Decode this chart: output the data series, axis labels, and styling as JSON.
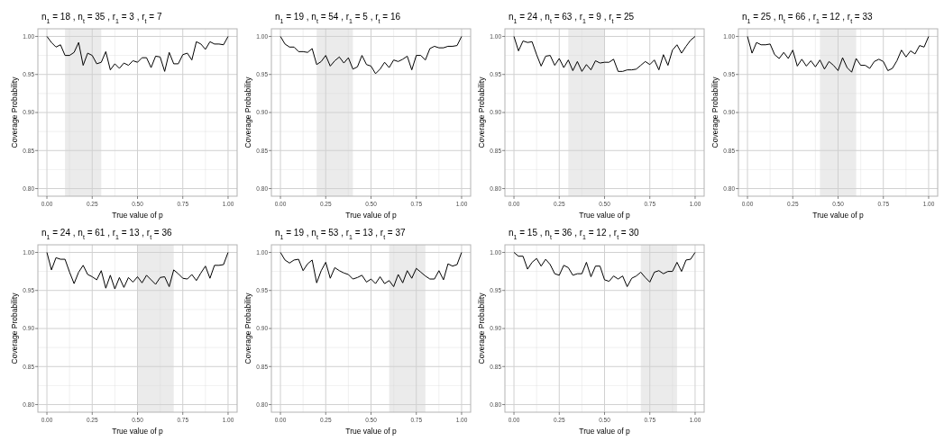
{
  "chart_data": [
    {
      "type": "line",
      "title": "n$_{1}$ = 18 , n$_{t}$ = 35 , r$_{1}$ = 3 , r$_{t}$ = 7",
      "xlabel": "True value of p",
      "ylabel": "Coverage Probability",
      "xlim": [
        -0.05,
        1.05
      ],
      "ylim": [
        0.79,
        1.01
      ],
      "xticks": [
        {
          "value": 0,
          "label": "0.00"
        },
        {
          "value": 0.25,
          "label": "0.25"
        },
        {
          "value": 0.5,
          "label": "0.50"
        },
        {
          "value": 0.75,
          "label": "0.75"
        },
        {
          "value": 1,
          "label": "1.00"
        }
      ],
      "yticks": [
        {
          "value": 0.8,
          "label": "0.80"
        },
        {
          "value": 0.85,
          "label": "0.85"
        },
        {
          "value": 0.9,
          "label": "0.90"
        },
        {
          "value": 0.95,
          "label": "0.95"
        },
        {
          "value": 1,
          "label": "1.00"
        }
      ],
      "grid": true,
      "bands": [
        {
          "axis": "x",
          "from": 0.1,
          "to": 0.3,
          "color": "#ebebeb"
        }
      ],
      "x": [
        0,
        0.025,
        0.05,
        0.075,
        0.1,
        0.125,
        0.15,
        0.175,
        0.2,
        0.225,
        0.25,
        0.275,
        0.3,
        0.325,
        0.35,
        0.375,
        0.4,
        0.425,
        0.45,
        0.475,
        0.5,
        0.525,
        0.55,
        0.575,
        0.6,
        0.625,
        0.65,
        0.675,
        0.7,
        0.725,
        0.75,
        0.775,
        0.8,
        0.825,
        0.85,
        0.875,
        0.9,
        0.925,
        0.95,
        0.975,
        1
      ],
      "series": [
        {
          "color": "#000000",
          "values": [
            1.0,
            0.992,
            0.986,
            0.989,
            0.975,
            0.975,
            0.979,
            0.992,
            0.962,
            0.978,
            0.975,
            0.964,
            0.966,
            0.98,
            0.956,
            0.964,
            0.958,
            0.965,
            0.962,
            0.968,
            0.966,
            0.972,
            0.972,
            0.959,
            0.974,
            0.973,
            0.954,
            0.979,
            0.964,
            0.964,
            0.976,
            0.978,
            0.969,
            0.993,
            0.99,
            0.983,
            0.993,
            0.99,
            0.99,
            0.989,
            1.0
          ]
        }
      ]
    },
    {
      "type": "line",
      "title": "n$_{1}$ = 19 , n$_{t}$ = 54 , r$_{1}$ = 5 , r$_{t}$ = 16",
      "xlabel": "True value of p",
      "ylabel": "Coverage Probability",
      "xlim": [
        -0.05,
        1.05
      ],
      "ylim": [
        0.79,
        1.01
      ],
      "xticks": [
        {
          "value": 0,
          "label": "0.00"
        },
        {
          "value": 0.25,
          "label": "0.25"
        },
        {
          "value": 0.5,
          "label": "0.50"
        },
        {
          "value": 0.75,
          "label": "0.75"
        },
        {
          "value": 1,
          "label": "1.00"
        }
      ],
      "yticks": [
        {
          "value": 0.8,
          "label": "0.80"
        },
        {
          "value": 0.85,
          "label": "0.85"
        },
        {
          "value": 0.9,
          "label": "0.90"
        },
        {
          "value": 0.95,
          "label": "0.95"
        },
        {
          "value": 1,
          "label": "1.00"
        }
      ],
      "grid": true,
      "bands": [
        {
          "axis": "x",
          "from": 0.2,
          "to": 0.4,
          "color": "#ebebeb"
        }
      ],
      "x": [
        0,
        0.025,
        0.05,
        0.075,
        0.1,
        0.125,
        0.15,
        0.175,
        0.2,
        0.225,
        0.25,
        0.275,
        0.3,
        0.325,
        0.35,
        0.375,
        0.4,
        0.425,
        0.45,
        0.475,
        0.5,
        0.525,
        0.55,
        0.575,
        0.6,
        0.625,
        0.65,
        0.675,
        0.7,
        0.725,
        0.75,
        0.775,
        0.8,
        0.825,
        0.85,
        0.875,
        0.9,
        0.925,
        0.95,
        0.975,
        1
      ],
      "series": [
        {
          "color": "#000000",
          "values": [
            1.0,
            0.99,
            0.986,
            0.986,
            0.98,
            0.98,
            0.979,
            0.984,
            0.963,
            0.967,
            0.975,
            0.961,
            0.968,
            0.973,
            0.965,
            0.972,
            0.957,
            0.96,
            0.975,
            0.963,
            0.961,
            0.951,
            0.957,
            0.966,
            0.959,
            0.969,
            0.967,
            0.97,
            0.974,
            0.956,
            0.975,
            0.975,
            0.969,
            0.984,
            0.987,
            0.985,
            0.985,
            0.987,
            0.987,
            0.988,
            1.0
          ]
        }
      ]
    },
    {
      "type": "line",
      "title": "n$_{1}$ = 24 , n$_{t}$ = 63 , r$_{1}$ = 9 , r$_{t}$ = 25",
      "xlabel": "True value of p",
      "ylabel": "Coverage Probability",
      "xlim": [
        -0.05,
        1.05
      ],
      "ylim": [
        0.79,
        1.01
      ],
      "xticks": [
        {
          "value": 0,
          "label": "0.00"
        },
        {
          "value": 0.25,
          "label": "0.25"
        },
        {
          "value": 0.5,
          "label": "0.50"
        },
        {
          "value": 0.75,
          "label": "0.75"
        },
        {
          "value": 1,
          "label": "1.00"
        }
      ],
      "yticks": [
        {
          "value": 0.8,
          "label": "0.80"
        },
        {
          "value": 0.85,
          "label": "0.85"
        },
        {
          "value": 0.9,
          "label": "0.90"
        },
        {
          "value": 0.95,
          "label": "0.95"
        },
        {
          "value": 1,
          "label": "1.00"
        }
      ],
      "grid": true,
      "bands": [
        {
          "axis": "x",
          "from": 0.3,
          "to": 0.5,
          "color": "#ebebeb"
        }
      ],
      "x": [
        0,
        0.025,
        0.05,
        0.075,
        0.1,
        0.125,
        0.15,
        0.175,
        0.2,
        0.225,
        0.25,
        0.275,
        0.3,
        0.325,
        0.35,
        0.375,
        0.4,
        0.425,
        0.45,
        0.475,
        0.5,
        0.525,
        0.55,
        0.575,
        0.6,
        0.625,
        0.65,
        0.675,
        0.7,
        0.725,
        0.75,
        0.775,
        0.8,
        0.825,
        0.85,
        0.875,
        0.9,
        0.925,
        0.95,
        0.975,
        1
      ],
      "series": [
        {
          "color": "#000000",
          "values": [
            1.0,
            0.981,
            0.994,
            0.992,
            0.993,
            0.976,
            0.961,
            0.974,
            0.975,
            0.962,
            0.971,
            0.959,
            0.969,
            0.955,
            0.967,
            0.954,
            0.963,
            0.956,
            0.968,
            0.965,
            0.966,
            0.966,
            0.97,
            0.954,
            0.954,
            0.956,
            0.956,
            0.957,
            0.962,
            0.967,
            0.963,
            0.969,
            0.956,
            0.976,
            0.962,
            0.982,
            0.989,
            0.978,
            0.987,
            0.995,
            1.0
          ]
        }
      ]
    },
    {
      "type": "line",
      "title": "n$_{1}$ = 25 , n$_{t}$ = 66 , r$_{1}$ = 12 , r$_{t}$ = 33",
      "xlabel": "True value of p",
      "ylabel": "Coverage Probability",
      "xlim": [
        -0.05,
        1.05
      ],
      "ylim": [
        0.79,
        1.01
      ],
      "xticks": [
        {
          "value": 0,
          "label": "0.00"
        },
        {
          "value": 0.25,
          "label": "0.25"
        },
        {
          "value": 0.5,
          "label": "0.50"
        },
        {
          "value": 0.75,
          "label": "0.75"
        },
        {
          "value": 1,
          "label": "1.00"
        }
      ],
      "yticks": [
        {
          "value": 0.8,
          "label": "0.80"
        },
        {
          "value": 0.85,
          "label": "0.85"
        },
        {
          "value": 0.9,
          "label": "0.90"
        },
        {
          "value": 0.95,
          "label": "0.95"
        },
        {
          "value": 1,
          "label": "1.00"
        }
      ],
      "grid": true,
      "bands": [
        {
          "axis": "x",
          "from": 0.4,
          "to": 0.6,
          "color": "#ebebeb"
        }
      ],
      "x": [
        0,
        0.025,
        0.05,
        0.075,
        0.1,
        0.125,
        0.15,
        0.175,
        0.2,
        0.225,
        0.25,
        0.275,
        0.3,
        0.325,
        0.35,
        0.375,
        0.4,
        0.425,
        0.45,
        0.475,
        0.5,
        0.525,
        0.55,
        0.575,
        0.6,
        0.625,
        0.65,
        0.675,
        0.7,
        0.725,
        0.75,
        0.775,
        0.8,
        0.825,
        0.85,
        0.875,
        0.9,
        0.925,
        0.95,
        0.975,
        1
      ],
      "series": [
        {
          "color": "#000000",
          "values": [
            1.0,
            0.978,
            0.992,
            0.989,
            0.989,
            0.99,
            0.976,
            0.971,
            0.979,
            0.971,
            0.982,
            0.961,
            0.97,
            0.961,
            0.968,
            0.96,
            0.969,
            0.957,
            0.967,
            0.962,
            0.955,
            0.972,
            0.959,
            0.953,
            0.971,
            0.962,
            0.962,
            0.958,
            0.967,
            0.97,
            0.967,
            0.955,
            0.958,
            0.968,
            0.982,
            0.973,
            0.981,
            0.977,
            0.988,
            0.986,
            1.0
          ]
        }
      ]
    },
    {
      "type": "line",
      "title": "n$_{1}$ = 24 , n$_{t}$ = 61 , r$_{1}$ = 13 , r$_{t}$ = 36",
      "xlabel": "True value of p",
      "ylabel": "Coverage Probability",
      "xlim": [
        -0.05,
        1.05
      ],
      "ylim": [
        0.79,
        1.01
      ],
      "xticks": [
        {
          "value": 0,
          "label": "0.00"
        },
        {
          "value": 0.25,
          "label": "0.25"
        },
        {
          "value": 0.5,
          "label": "0.50"
        },
        {
          "value": 0.75,
          "label": "0.75"
        },
        {
          "value": 1,
          "label": "1.00"
        }
      ],
      "yticks": [
        {
          "value": 0.8,
          "label": "0.80"
        },
        {
          "value": 0.85,
          "label": "0.85"
        },
        {
          "value": 0.9,
          "label": "0.90"
        },
        {
          "value": 0.95,
          "label": "0.95"
        },
        {
          "value": 1,
          "label": "1.00"
        }
      ],
      "grid": true,
      "bands": [
        {
          "axis": "x",
          "from": 0.5,
          "to": 0.7,
          "color": "#ebebeb"
        }
      ],
      "x": [
        0,
        0.025,
        0.05,
        0.075,
        0.1,
        0.125,
        0.15,
        0.175,
        0.2,
        0.225,
        0.25,
        0.275,
        0.3,
        0.325,
        0.35,
        0.375,
        0.4,
        0.425,
        0.45,
        0.475,
        0.5,
        0.525,
        0.55,
        0.575,
        0.6,
        0.625,
        0.65,
        0.675,
        0.7,
        0.725,
        0.75,
        0.775,
        0.8,
        0.825,
        0.85,
        0.875,
        0.9,
        0.925,
        0.95,
        0.975,
        1
      ],
      "series": [
        {
          "color": "#000000",
          "values": [
            1.0,
            0.977,
            0.993,
            0.991,
            0.991,
            0.974,
            0.959,
            0.974,
            0.983,
            0.971,
            0.968,
            0.964,
            0.976,
            0.953,
            0.97,
            0.952,
            0.967,
            0.954,
            0.967,
            0.961,
            0.968,
            0.96,
            0.97,
            0.964,
            0.958,
            0.967,
            0.968,
            0.955,
            0.977,
            0.972,
            0.966,
            0.965,
            0.971,
            0.963,
            0.973,
            0.982,
            0.966,
            0.983,
            0.983,
            0.984,
            1.0
          ]
        }
      ]
    },
    {
      "type": "line",
      "title": "n$_{1}$ = 19 , n$_{t}$ = 53 , r$_{1}$ = 13 , r$_{t}$ = 37",
      "xlabel": "True value of p",
      "ylabel": "Coverage Probability",
      "xlim": [
        -0.05,
        1.05
      ],
      "ylim": [
        0.79,
        1.01
      ],
      "xticks": [
        {
          "value": 0,
          "label": "0.00"
        },
        {
          "value": 0.25,
          "label": "0.25"
        },
        {
          "value": 0.5,
          "label": "0.50"
        },
        {
          "value": 0.75,
          "label": "0.75"
        },
        {
          "value": 1,
          "label": "1.00"
        }
      ],
      "yticks": [
        {
          "value": 0.8,
          "label": "0.80"
        },
        {
          "value": 0.85,
          "label": "0.85"
        },
        {
          "value": 0.9,
          "label": "0.90"
        },
        {
          "value": 0.95,
          "label": "0.95"
        },
        {
          "value": 1,
          "label": "1.00"
        }
      ],
      "grid": true,
      "bands": [
        {
          "axis": "x",
          "from": 0.6,
          "to": 0.8,
          "color": "#ebebeb"
        }
      ],
      "x": [
        0,
        0.025,
        0.05,
        0.075,
        0.1,
        0.125,
        0.15,
        0.175,
        0.2,
        0.225,
        0.25,
        0.275,
        0.3,
        0.325,
        0.35,
        0.375,
        0.4,
        0.425,
        0.45,
        0.475,
        0.5,
        0.525,
        0.55,
        0.575,
        0.6,
        0.625,
        0.65,
        0.675,
        0.7,
        0.725,
        0.75,
        0.775,
        0.8,
        0.825,
        0.85,
        0.875,
        0.9,
        0.925,
        0.95,
        0.975,
        1
      ],
      "series": [
        {
          "color": "#000000",
          "values": [
            1.0,
            0.99,
            0.986,
            0.99,
            0.991,
            0.976,
            0.985,
            0.99,
            0.96,
            0.976,
            0.987,
            0.966,
            0.98,
            0.976,
            0.973,
            0.971,
            0.965,
            0.967,
            0.97,
            0.961,
            0.965,
            0.959,
            0.968,
            0.959,
            0.963,
            0.955,
            0.971,
            0.96,
            0.976,
            0.966,
            0.979,
            0.974,
            0.969,
            0.965,
            0.965,
            0.976,
            0.964,
            0.985,
            0.982,
            0.984,
            1.0
          ]
        }
      ]
    },
    {
      "type": "line",
      "title": "n$_{1}$ = 15 , n$_{t}$ = 36 , r$_{1}$ = 12 , r$_{t}$ = 30",
      "xlabel": "True value of p",
      "ylabel": "Coverage Probability",
      "xlim": [
        -0.05,
        1.05
      ],
      "ylim": [
        0.79,
        1.01
      ],
      "xticks": [
        {
          "value": 0,
          "label": "0.00"
        },
        {
          "value": 0.25,
          "label": "0.25"
        },
        {
          "value": 0.5,
          "label": "0.50"
        },
        {
          "value": 0.75,
          "label": "0.75"
        },
        {
          "value": 1,
          "label": "1.00"
        }
      ],
      "yticks": [
        {
          "value": 0.8,
          "label": "0.80"
        },
        {
          "value": 0.85,
          "label": "0.85"
        },
        {
          "value": 0.9,
          "label": "0.90"
        },
        {
          "value": 0.95,
          "label": "0.95"
        },
        {
          "value": 1,
          "label": "1.00"
        }
      ],
      "grid": true,
      "bands": [
        {
          "axis": "x",
          "from": 0.7,
          "to": 0.9,
          "color": "#ebebeb"
        }
      ],
      "x": [
        0,
        0.025,
        0.05,
        0.075,
        0.1,
        0.125,
        0.15,
        0.175,
        0.2,
        0.225,
        0.25,
        0.275,
        0.3,
        0.325,
        0.35,
        0.375,
        0.4,
        0.425,
        0.45,
        0.475,
        0.5,
        0.525,
        0.55,
        0.575,
        0.6,
        0.625,
        0.65,
        0.675,
        0.7,
        0.725,
        0.75,
        0.775,
        0.8,
        0.825,
        0.85,
        0.875,
        0.9,
        0.925,
        0.95,
        0.975,
        1
      ],
      "series": [
        {
          "color": "#000000",
          "values": [
            1.0,
            0.995,
            0.995,
            0.978,
            0.987,
            0.992,
            0.982,
            0.991,
            0.984,
            0.972,
            0.97,
            0.983,
            0.98,
            0.97,
            0.972,
            0.972,
            0.987,
            0.968,
            0.982,
            0.982,
            0.964,
            0.962,
            0.969,
            0.965,
            0.969,
            0.955,
            0.966,
            0.969,
            0.974,
            0.967,
            0.961,
            0.974,
            0.976,
            0.972,
            0.975,
            0.975,
            0.987,
            0.975,
            0.99,
            0.991,
            1.0
          ]
        }
      ]
    }
  ]
}
